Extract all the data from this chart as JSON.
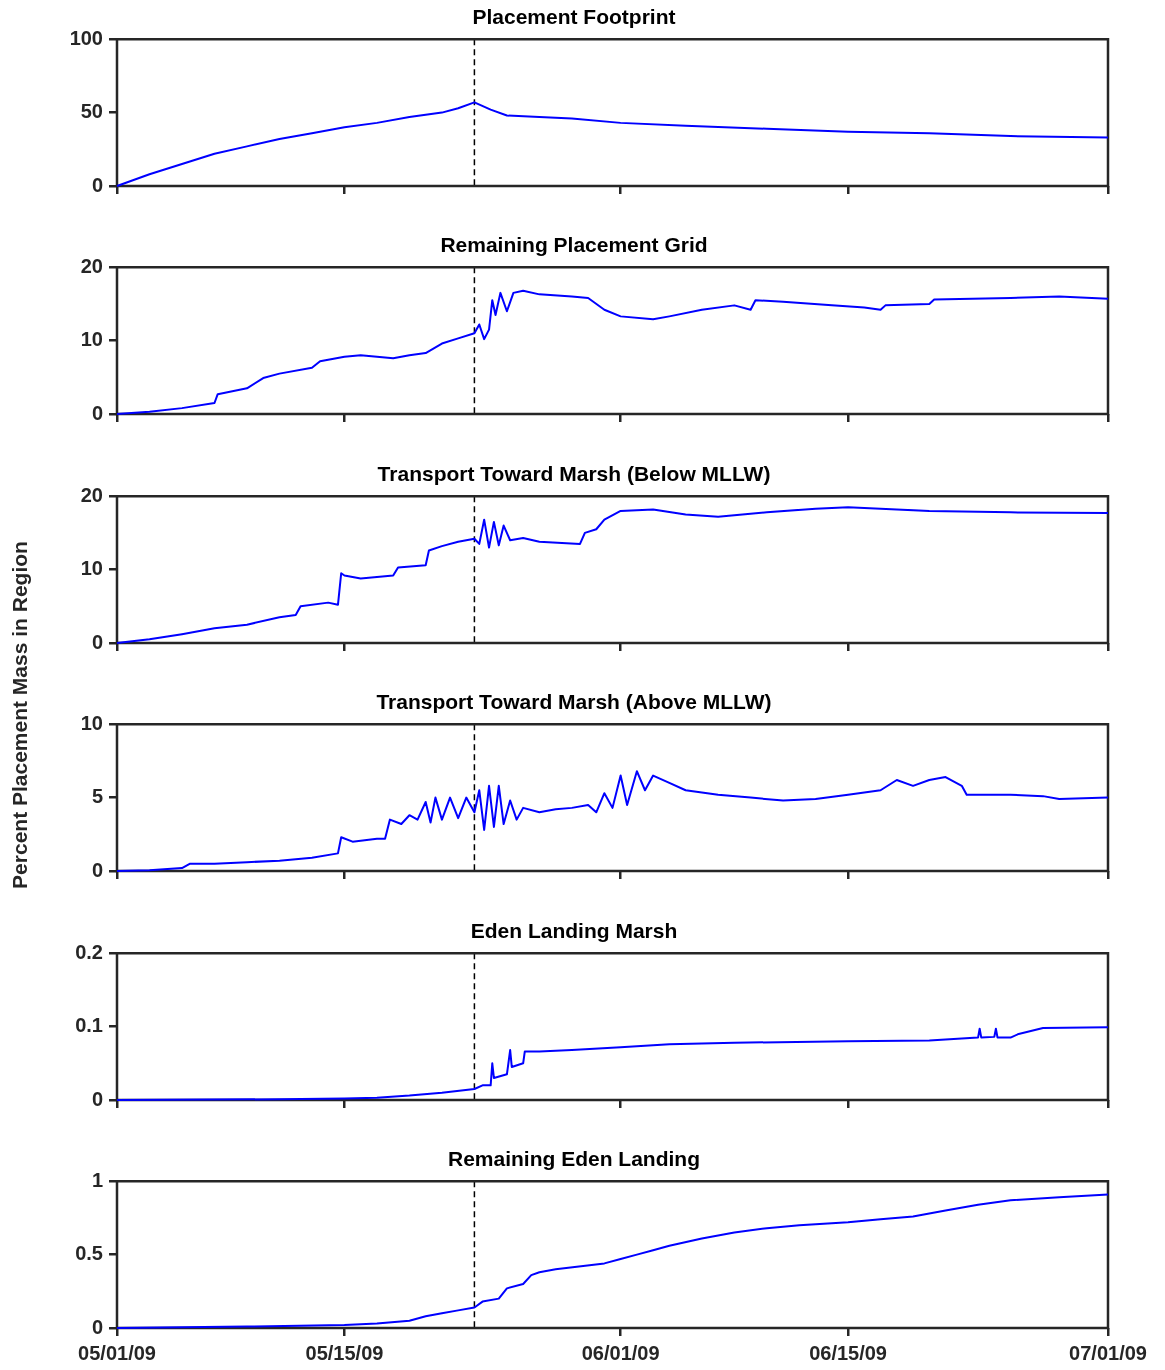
{
  "chart_data": [
    {
      "type": "line",
      "title": "Placement Footprint",
      "tick_labels": "y",
      "grid": false,
      "xlim": [
        "2009-05-01",
        "2009-07-01"
      ],
      "xticks": [
        {
          "value": "2009-05-01",
          "label": null
        },
        {
          "value": "2009-05-15",
          "label": null
        },
        {
          "value": "2009-06-01",
          "label": null
        },
        {
          "value": "2009-06-15",
          "label": null
        },
        {
          "value": "2009-07-01",
          "label": null
        }
      ],
      "ylim": [
        0,
        100
      ],
      "yticks": [
        0,
        50,
        100
      ],
      "ref_lines": [
        {
          "axis": "x",
          "value": "2009-05-23",
          "color": "#000000",
          "line_style": "dashed"
        }
      ],
      "series": [
        {
          "color": "#0000ff",
          "x": [
            "2009-05-01",
            "2009-05-03",
            "2009-05-05",
            "2009-05-07",
            "2009-05-09",
            "2009-05-11",
            "2009-05-13",
            "2009-05-15",
            "2009-05-17",
            "2009-05-19",
            "2009-05-21",
            "2009-05-22",
            "2009-05-23",
            "2009-05-24",
            "2009-05-25",
            "2009-05-27",
            "2009-05-29",
            "2009-06-01",
            "2009-06-05",
            "2009-06-10",
            "2009-06-15",
            "2009-06-20",
            "2009-06-25",
            "2009-07-01"
          ],
          "values": [
            0,
            8,
            15,
            22,
            27,
            32,
            36,
            40,
            43,
            47,
            50,
            53,
            57,
            52,
            48,
            47,
            46,
            43,
            41,
            39,
            37,
            36,
            34,
            33
          ]
        }
      ]
    },
    {
      "type": "line",
      "title": "Remaining Placement Grid",
      "tick_labels": "y",
      "grid": false,
      "xlim": [
        "2009-05-01",
        "2009-07-01"
      ],
      "xticks": [
        {
          "value": "2009-05-01",
          "label": null
        },
        {
          "value": "2009-05-15",
          "label": null
        },
        {
          "value": "2009-06-01",
          "label": null
        },
        {
          "value": "2009-06-15",
          "label": null
        },
        {
          "value": "2009-07-01",
          "label": null
        }
      ],
      "ylim": [
        0,
        20
      ],
      "yticks": [
        0,
        10,
        20
      ],
      "ref_lines": [
        {
          "axis": "x",
          "value": "2009-05-23",
          "color": "#000000",
          "line_style": "dashed"
        }
      ],
      "series": [
        {
          "color": "#0000ff",
          "x": [
            "2009-05-01",
            "2009-05-03",
            "2009-05-05",
            "2009-05-07",
            "2009-05-07T04:48",
            "2009-05-09",
            "2009-05-10",
            "2009-05-11",
            "2009-05-13",
            "2009-05-13T12:00",
            "2009-05-15",
            "2009-05-16",
            "2009-05-17",
            "2009-05-18",
            "2009-05-19",
            "2009-05-20",
            "2009-05-21",
            "2009-05-22",
            "2009-05-23",
            "2009-05-23T07:12",
            "2009-05-23T14:24",
            "2009-05-23T21:36",
            "2009-05-24T02:24",
            "2009-05-24T07:12",
            "2009-05-24T14:24",
            "2009-05-25",
            "2009-05-25T09:36",
            "2009-05-26",
            "2009-05-27",
            "2009-05-29",
            "2009-05-30",
            "2009-05-31",
            "2009-06-01",
            "2009-06-03",
            "2009-06-04",
            "2009-06-06",
            "2009-06-08",
            "2009-06-09",
            "2009-06-09T07:12",
            "2009-06-11",
            "2009-06-14",
            "2009-06-16",
            "2009-06-17",
            "2009-06-17T07:12",
            "2009-06-20",
            "2009-06-20T07:12",
            "2009-06-25",
            "2009-06-28",
            "2009-07-01"
          ],
          "values": [
            0,
            0.3,
            0.8,
            1.5,
            2.7,
            3.5,
            4.9,
            5.5,
            6.3,
            7.2,
            7.8,
            8,
            7.8,
            7.6,
            8,
            8.3,
            9.6,
            10.3,
            11,
            12.2,
            10.2,
            11.5,
            15.5,
            13.5,
            16.5,
            14,
            16.5,
            16.8,
            16.3,
            16,
            15.8,
            14.2,
            13.3,
            12.9,
            13.3,
            14.2,
            14.8,
            14.2,
            15.5,
            15.3,
            14.8,
            14.5,
            14.2,
            14.8,
            15,
            15.6,
            15.8,
            16,
            15.7
          ]
        }
      ]
    },
    {
      "type": "line",
      "title": "Transport Toward Marsh (Below MLLW)",
      "tick_labels": "y",
      "grid": false,
      "xlim": [
        "2009-05-01",
        "2009-07-01"
      ],
      "xticks": [
        {
          "value": "2009-05-01",
          "label": null
        },
        {
          "value": "2009-05-15",
          "label": null
        },
        {
          "value": "2009-06-01",
          "label": null
        },
        {
          "value": "2009-06-15",
          "label": null
        },
        {
          "value": "2009-07-01",
          "label": null
        }
      ],
      "ylim": [
        0,
        20
      ],
      "yticks": [
        0,
        10,
        20
      ],
      "ref_lines": [
        {
          "axis": "x",
          "value": "2009-05-23",
          "color": "#000000",
          "line_style": "dashed"
        }
      ],
      "series": [
        {
          "color": "#0000ff",
          "x": [
            "2009-05-01",
            "2009-05-03",
            "2009-05-05",
            "2009-05-07",
            "2009-05-09",
            "2009-05-11",
            "2009-05-12",
            "2009-05-12T07:12",
            "2009-05-14",
            "2009-05-14T14:24",
            "2009-05-14T19:12",
            "2009-05-15",
            "2009-05-16",
            "2009-05-17",
            "2009-05-18",
            "2009-05-18T07:12",
            "2009-05-20",
            "2009-05-20T04:48",
            "2009-05-21",
            "2009-05-22",
            "2009-05-23",
            "2009-05-23T07:12",
            "2009-05-23T14:24",
            "2009-05-23T21:36",
            "2009-05-24T04:48",
            "2009-05-24T12:00",
            "2009-05-24T19:12",
            "2009-05-25T04:48",
            "2009-05-26",
            "2009-05-27",
            "2009-05-29T12:00",
            "2009-05-29T19:12",
            "2009-05-30T12:00",
            "2009-05-31",
            "2009-06-01",
            "2009-06-03",
            "2009-06-05",
            "2009-06-07",
            "2009-06-10",
            "2009-06-13",
            "2009-06-15",
            "2009-06-17",
            "2009-06-20",
            "2009-06-25",
            "2009-07-01"
          ],
          "values": [
            0,
            0.5,
            1.2,
            2,
            2.5,
            3.5,
            3.8,
            5,
            5.5,
            5.2,
            9.5,
            9.2,
            8.8,
            9,
            9.2,
            10.3,
            10.6,
            12.6,
            13.2,
            13.8,
            14.2,
            13.5,
            16.8,
            13,
            16.5,
            13.3,
            16,
            14,
            14.3,
            13.8,
            13.5,
            15,
            15.5,
            16.8,
            18,
            18.2,
            17.5,
            17.2,
            17.8,
            18.3,
            18.5,
            18.3,
            18,
            17.8,
            17.7
          ]
        }
      ]
    },
    {
      "type": "line",
      "title": "Transport Toward Marsh (Above MLLW)",
      "ylabel": "Percent Placement Mass in Region",
      "tick_labels": "y",
      "grid": false,
      "xlim": [
        "2009-05-01",
        "2009-07-01"
      ],
      "xticks": [
        {
          "value": "2009-05-01",
          "label": null
        },
        {
          "value": "2009-05-15",
          "label": null
        },
        {
          "value": "2009-06-01",
          "label": null
        },
        {
          "value": "2009-06-15",
          "label": null
        },
        {
          "value": "2009-07-01",
          "label": null
        }
      ],
      "ylim": [
        0,
        10
      ],
      "yticks": [
        0,
        5,
        10
      ],
      "ref_lines": [
        {
          "axis": "x",
          "value": "2009-05-23",
          "color": "#000000",
          "line_style": "dashed"
        }
      ],
      "series": [
        {
          "color": "#0000ff",
          "x": [
            "2009-05-01",
            "2009-05-03",
            "2009-05-05",
            "2009-05-05T12:00",
            "2009-05-07",
            "2009-05-09",
            "2009-05-11",
            "2009-05-13",
            "2009-05-14T14:24",
            "2009-05-14T19:12",
            "2009-05-15T12:00",
            "2009-05-17",
            "2009-05-17T12:00",
            "2009-05-17T19:12",
            "2009-05-18T12:00",
            "2009-05-19",
            "2009-05-19T12:00",
            "2009-05-20",
            "2009-05-20T07:12",
            "2009-05-20T14:24",
            "2009-05-21",
            "2009-05-21T12:00",
            "2009-05-22",
            "2009-05-22T12:00",
            "2009-05-23",
            "2009-05-23T07:12",
            "2009-05-23T14:24",
            "2009-05-23T21:36",
            "2009-05-24T04:48",
            "2009-05-24T12:00",
            "2009-05-24T19:12",
            "2009-05-25T04:48",
            "2009-05-25T14:24",
            "2009-05-26",
            "2009-05-27",
            "2009-05-28",
            "2009-05-29",
            "2009-05-30",
            "2009-05-30T12:00",
            "2009-05-31",
            "2009-05-31T12:00",
            "2009-06-01",
            "2009-06-01T09:36",
            "2009-06-02",
            "2009-06-02T12:00",
            "2009-06-03",
            "2009-06-04",
            "2009-06-05",
            "2009-06-07",
            "2009-06-09",
            "2009-06-11",
            "2009-06-13",
            "2009-06-15",
            "2009-06-17",
            "2009-06-18",
            "2009-06-19",
            "2009-06-20",
            "2009-06-21",
            "2009-06-22",
            "2009-06-22T07:12",
            "2009-06-25",
            "2009-06-27",
            "2009-06-28",
            "2009-07-01"
          ],
          "values": [
            0,
            0.05,
            0.2,
            0.5,
            0.5,
            0.6,
            0.7,
            0.9,
            1.2,
            2.3,
            2,
            2.2,
            2.2,
            3.5,
            3.2,
            3.8,
            3.5,
            4.7,
            3.3,
            5,
            3.5,
            5,
            3.6,
            5,
            4,
            5.5,
            2.8,
            5.8,
            3,
            5.8,
            3.2,
            4.8,
            3.5,
            4.3,
            4,
            4.2,
            4.3,
            4.5,
            4,
            5.3,
            4.3,
            6.5,
            4.5,
            6.8,
            5.5,
            6.5,
            6,
            5.5,
            5.2,
            5,
            4.8,
            4.9,
            5.2,
            5.5,
            6.2,
            5.8,
            6.2,
            6.4,
            5.8,
            5.2,
            5.2,
            5.1,
            4.9,
            5
          ]
        }
      ]
    },
    {
      "type": "line",
      "title": "Eden Landing Marsh",
      "tick_labels": "y",
      "grid": false,
      "xlim": [
        "2009-05-01",
        "2009-07-01"
      ],
      "xticks": [
        {
          "value": "2009-05-01",
          "label": null
        },
        {
          "value": "2009-05-15",
          "label": null
        },
        {
          "value": "2009-06-01",
          "label": null
        },
        {
          "value": "2009-06-15",
          "label": null
        },
        {
          "value": "2009-07-01",
          "label": null
        }
      ],
      "ylim": [
        0,
        0.2
      ],
      "yticks": [
        0,
        0.1,
        0.2
      ],
      "ref_lines": [
        {
          "axis": "x",
          "value": "2009-05-23",
          "color": "#000000",
          "line_style": "dashed"
        }
      ],
      "series": [
        {
          "color": "#0000ff",
          "x": [
            "2009-05-01",
            "2009-05-11",
            "2009-05-15",
            "2009-05-17",
            "2009-05-19",
            "2009-05-21",
            "2009-05-23",
            "2009-05-23T12:00",
            "2009-05-24",
            "2009-05-24T02:24",
            "2009-05-24T04:48",
            "2009-05-25",
            "2009-05-25T04:48",
            "2009-05-25T07:12",
            "2009-05-26",
            "2009-05-26T02:24",
            "2009-05-27",
            "2009-05-29",
            "2009-06-01",
            "2009-06-04",
            "2009-06-08",
            "2009-06-15",
            "2009-06-20",
            "2009-06-23",
            "2009-06-23T02:24",
            "2009-06-23T04:48",
            "2009-06-24",
            "2009-06-24T02:24",
            "2009-06-24T04:48",
            "2009-06-25",
            "2009-06-25T12:00",
            "2009-06-27",
            "2009-07-01"
          ],
          "values": [
            0,
            0.001,
            0.002,
            0.003,
            0.006,
            0.01,
            0.015,
            0.02,
            0.02,
            0.05,
            0.03,
            0.035,
            0.068,
            0.045,
            0.05,
            0.066,
            0.066,
            0.068,
            0.072,
            0.076,
            0.078,
            0.08,
            0.081,
            0.085,
            0.097,
            0.085,
            0.086,
            0.097,
            0.085,
            0.085,
            0.09,
            0.098,
            0.099
          ]
        }
      ]
    },
    {
      "type": "line",
      "title": "Remaining Eden Landing",
      "grid": false,
      "xlim": [
        "2009-05-01",
        "2009-07-01"
      ],
      "xticks": [
        {
          "value": "2009-05-01",
          "label": "05/01/09"
        },
        {
          "value": "2009-05-15",
          "label": "05/15/09"
        },
        {
          "value": "2009-06-01",
          "label": "06/01/09"
        },
        {
          "value": "2009-06-15",
          "label": "06/15/09"
        },
        {
          "value": "2009-07-01",
          "label": "07/01/09"
        }
      ],
      "ylim": [
        0,
        1
      ],
      "yticks": [
        0,
        0.5,
        1
      ],
      "ref_lines": [
        {
          "axis": "x",
          "value": "2009-05-23",
          "color": "#000000",
          "line_style": "dashed"
        }
      ],
      "series": [
        {
          "color": "#0000ff",
          "x": [
            "2009-05-01",
            "2009-05-09",
            "2009-05-15",
            "2009-05-17",
            "2009-05-19",
            "2009-05-20",
            "2009-05-21",
            "2009-05-22",
            "2009-05-23",
            "2009-05-23T12:00",
            "2009-05-24T12:00",
            "2009-05-25",
            "2009-05-26",
            "2009-05-26T12:00",
            "2009-05-27",
            "2009-05-28",
            "2009-05-31",
            "2009-06-01",
            "2009-06-02",
            "2009-06-03",
            "2009-06-04",
            "2009-06-06",
            "2009-06-08",
            "2009-06-10",
            "2009-06-12",
            "2009-06-15",
            "2009-06-17",
            "2009-06-19",
            "2009-06-21",
            "2009-06-23",
            "2009-06-25",
            "2009-06-28",
            "2009-07-01"
          ],
          "values": [
            0,
            0.01,
            0.02,
            0.03,
            0.05,
            0.08,
            0.1,
            0.12,
            0.14,
            0.18,
            0.2,
            0.27,
            0.3,
            0.36,
            0.38,
            0.4,
            0.44,
            0.47,
            0.5,
            0.53,
            0.56,
            0.61,
            0.65,
            0.68,
            0.7,
            0.72,
            0.74,
            0.76,
            0.8,
            0.84,
            0.87,
            0.89,
            0.91
          ]
        }
      ]
    }
  ]
}
